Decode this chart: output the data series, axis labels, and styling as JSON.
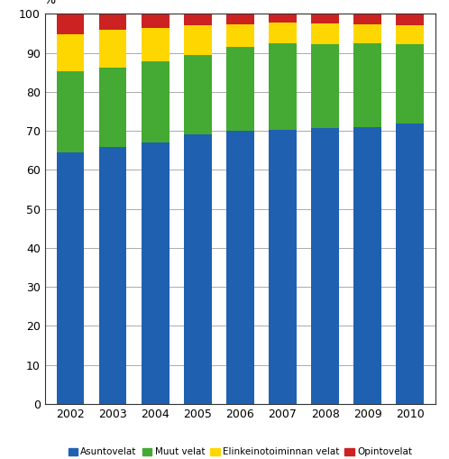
{
  "years": [
    "2002",
    "2003",
    "2004",
    "2005",
    "2006",
    "2007",
    "2008",
    "2009",
    "2010"
  ],
  "asuntovelat": [
    64.5,
    65.8,
    67.0,
    69.0,
    70.0,
    70.2,
    70.8,
    71.0,
    71.8
  ],
  "muut_velat": [
    20.8,
    20.5,
    20.8,
    20.5,
    21.5,
    22.3,
    21.5,
    21.4,
    20.5
  ],
  "elinkeinot_velat": [
    9.5,
    9.5,
    8.5,
    7.5,
    5.8,
    5.3,
    5.3,
    4.8,
    4.7
  ],
  "opintovelat": [
    5.2,
    4.2,
    3.7,
    3.0,
    2.7,
    2.2,
    2.4,
    2.8,
    3.0
  ],
  "colors": {
    "asuntovelat": "#2060B0",
    "muut_velat": "#44AA33",
    "elinkeinot_velat": "#FFD700",
    "opintovelat": "#CC2222"
  },
  "legend_labels": [
    "Asuntovelat",
    "Muut velat",
    "Elinkeinotoiminnan velat",
    "Opintovelat"
  ],
  "ylabel": "%",
  "ylim": [
    0,
    100
  ],
  "yticks": [
    0,
    10,
    20,
    30,
    40,
    50,
    60,
    70,
    80,
    90,
    100
  ],
  "background_color": "#ffffff",
  "bar_width": 0.65,
  "grid_color": "#888888"
}
